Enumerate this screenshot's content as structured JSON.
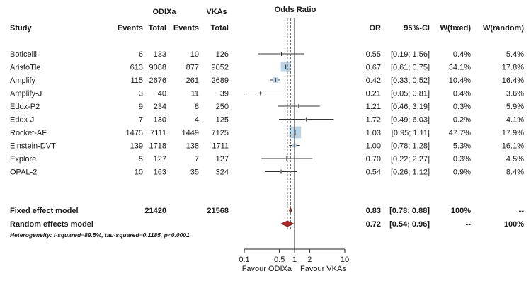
{
  "chart_data": {
    "type": "forest",
    "title": "Odds Ratio",
    "group_headers": {
      "a": "ODIXa",
      "b": "VKAs"
    },
    "columns": {
      "study": "Study",
      "events_a": "Events",
      "total_a": "Total",
      "events_b": "Events",
      "total_b": "Total",
      "or": "OR",
      "ci": "95%-CI",
      "w_fixed": "W(fixed)",
      "w_random": "W(random)"
    },
    "studies": [
      {
        "name": "Boticelli",
        "events_a": "6",
        "total_a": "133",
        "events_b": "10",
        "total_b": "126",
        "or_text": "0.55",
        "ci_text": "[0.19; 1.56]",
        "w_fixed": "0.4%",
        "w_random": "5.4%",
        "or": 0.55,
        "lo": 0.19,
        "hi": 1.56,
        "weight": 0.4
      },
      {
        "name": "AristoTle",
        "events_a": "613",
        "total_a": "9088",
        "events_b": "877",
        "total_b": "9052",
        "or_text": "0.67",
        "ci_text": "[0.61; 0.75]",
        "w_fixed": "34.1%",
        "w_random": "17.8%",
        "or": 0.67,
        "lo": 0.61,
        "hi": 0.75,
        "weight": 34.1
      },
      {
        "name": "Amplify",
        "events_a": "115",
        "total_a": "2676",
        "events_b": "261",
        "total_b": "2689",
        "or_text": "0.42",
        "ci_text": "[0.33; 0.52]",
        "w_fixed": "10.4%",
        "w_random": "16.4%",
        "or": 0.42,
        "lo": 0.33,
        "hi": 0.52,
        "weight": 10.4
      },
      {
        "name": "Amplify-J",
        "events_a": "3",
        "total_a": "40",
        "events_b": "11",
        "total_b": "39",
        "or_text": "0.21",
        "ci_text": "[0.05; 0.81]",
        "w_fixed": "0.4%",
        "w_random": "3.6%",
        "or": 0.21,
        "lo": 0.05,
        "hi": 0.81,
        "weight": 0.4
      },
      {
        "name": "Edox-P2",
        "events_a": "9",
        "total_a": "234",
        "events_b": "8",
        "total_b": "250",
        "or_text": "1.21",
        "ci_text": "[0.46; 3.19]",
        "w_fixed": "0.3%",
        "w_random": "5.9%",
        "or": 1.21,
        "lo": 0.46,
        "hi": 3.19,
        "weight": 0.3
      },
      {
        "name": "Edox-J",
        "events_a": "7",
        "total_a": "130",
        "events_b": "4",
        "total_b": "125",
        "or_text": "1.72",
        "ci_text": "[0.49; 6.03]",
        "w_fixed": "0.2%",
        "w_random": "4.1%",
        "or": 1.72,
        "lo": 0.49,
        "hi": 6.03,
        "weight": 0.2
      },
      {
        "name": "Rocket-AF",
        "events_a": "1475",
        "total_a": "7111",
        "events_b": "1449",
        "total_b": "7125",
        "or_text": "1.03",
        "ci_text": "[0.95; 1.11]",
        "w_fixed": "47.7%",
        "w_random": "17.9%",
        "or": 1.03,
        "lo": 0.95,
        "hi": 1.11,
        "weight": 47.7
      },
      {
        "name": "Einstein-DVT",
        "events_a": "139",
        "total_a": "1718",
        "events_b": "138",
        "total_b": "1711",
        "or_text": "1.00",
        "ci_text": "[0.78; 1.28]",
        "w_fixed": "5.3%",
        "w_random": "16.1%",
        "or": 1.0,
        "lo": 0.78,
        "hi": 1.28,
        "weight": 5.3
      },
      {
        "name": "Explore",
        "events_a": "5",
        "total_a": "127",
        "events_b": "7",
        "total_b": "127",
        "or_text": "0.70",
        "ci_text": "[0.22; 2.27]",
        "w_fixed": "0.3%",
        "w_random": "4.5%",
        "or": 0.7,
        "lo": 0.22,
        "hi": 2.27,
        "weight": 0.3
      },
      {
        "name": "OPAL-2",
        "events_a": "10",
        "total_a": "163",
        "events_b": "35",
        "total_b": "324",
        "or_text": "0.54",
        "ci_text": "[0.26; 1.12]",
        "w_fixed": "0.9%",
        "w_random": "8.4%",
        "or": 0.54,
        "lo": 0.26,
        "hi": 1.12,
        "weight": 0.9
      }
    ],
    "summaries": [
      {
        "name": "Fixed effect model",
        "total_a": "21420",
        "total_b": "21568",
        "or_text": "0.83",
        "ci_text": "[0.78; 0.88]",
        "w_fixed": "100%",
        "w_random": "--",
        "or": 0.83,
        "lo": 0.78,
        "hi": 0.88,
        "color": "#8b2a1a"
      },
      {
        "name": "Random effects model",
        "total_a": "",
        "total_b": "",
        "or_text": "0.72",
        "ci_text": "[0.54; 0.96]",
        "w_fixed": "--",
        "w_random": "100%",
        "or": 0.72,
        "lo": 0.54,
        "hi": 0.96,
        "color": "#c81e1e"
      }
    ],
    "heterogeneity": "Heterogeneity: I-squared=89.5%, tau-squared=0.1185, p<0.0001",
    "x_scale": "log",
    "x_ticks": [
      0.1,
      0.5,
      1,
      2,
      10
    ],
    "x_tick_labels": [
      "0.1",
      "0.5",
      "1",
      "2",
      "10"
    ],
    "x_range": [
      0.1,
      10
    ],
    "favours_left": "Favour ODIXa",
    "favours_right": "Favour VKAs",
    "box_color": "#b8d4e6"
  }
}
